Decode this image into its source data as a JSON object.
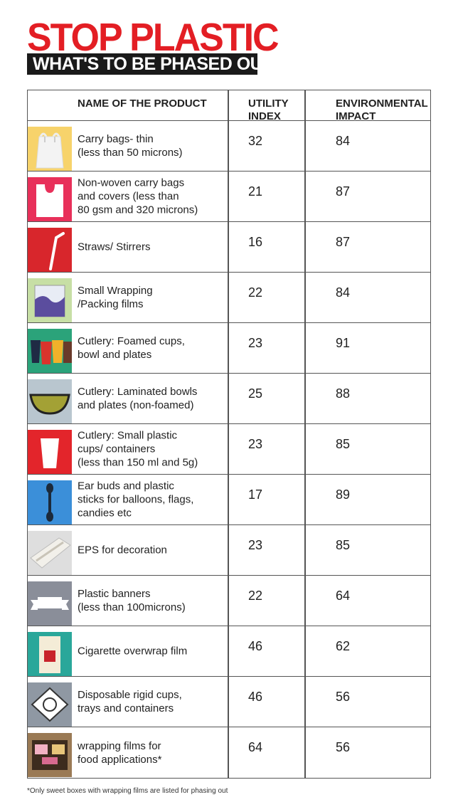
{
  "title": "STOP PLASTIC",
  "subtitle": "WHAT'S TO BE PHASED OUT",
  "footnote": "*Only sweet boxes with wrapping films are listed for phasing out",
  "chart_data": {
    "type": "table",
    "columns": [
      "NAME OF THE PRODUCT",
      "UTILITY INDEX",
      "ENVIRONMENTAL IMPACT"
    ],
    "rows": [
      {
        "name": "Carry bags- thin\n(less than 50 microns)",
        "utility": 32,
        "impact": 84,
        "icon": "carry-bag-icon",
        "color": "#f7d36b"
      },
      {
        "name": "Non-woven carry bags\nand covers (less than\n80 gsm and 320 microns)",
        "utility": 21,
        "impact": 87,
        "icon": "non-woven-bag-icon",
        "color": "#e8305a"
      },
      {
        "name": "Straws/ Stirrers",
        "utility": 16,
        "impact": 87,
        "icon": "straw-icon",
        "color": "#d8262c"
      },
      {
        "name": "Small Wrapping\n/Packing films",
        "utility": 22,
        "impact": 84,
        "icon": "wrapping-film-icon",
        "color": "#c7dfa5"
      },
      {
        "name": "Cutlery: Foamed cups,\nbowl and plates",
        "utility": 23,
        "impact": 91,
        "icon": "foamed-cups-icon",
        "color": "#2ba37a"
      },
      {
        "name": "Cutlery: Laminated bowls\nand plates (non-foamed)",
        "utility": 25,
        "impact": 88,
        "icon": "laminated-bowl-icon",
        "color": "#b9c6cf"
      },
      {
        "name": "Cutlery: Small plastic\ncups/ containers\n(less than 150 ml and 5g)",
        "utility": 23,
        "impact": 85,
        "icon": "plastic-cup-icon",
        "color": "#e3252b"
      },
      {
        "name": "Ear buds and plastic\nsticks for balloons, flags,\ncandies etc",
        "utility": 17,
        "impact": 89,
        "icon": "ear-bud-icon",
        "color": "#3b8fd9"
      },
      {
        "name": "EPS for decoration",
        "utility": 23,
        "impact": 85,
        "icon": "eps-decoration-icon",
        "color": "#dedede"
      },
      {
        "name": "Plastic banners\n(less than 100microns)",
        "utility": 22,
        "impact": 64,
        "icon": "banner-icon",
        "color": "#8a8e99"
      },
      {
        "name": "Cigarette overwrap film",
        "utility": 46,
        "impact": 62,
        "icon": "cigarette-pack-icon",
        "color": "#2aa79a"
      },
      {
        "name": "Disposable rigid cups,\ntrays and containers",
        "utility": 46,
        "impact": 56,
        "icon": "rigid-tray-icon",
        "color": "#8f98a3"
      },
      {
        "name": "wrapping films for\nfood applications*",
        "utility": 64,
        "impact": 56,
        "icon": "sweet-box-icon",
        "color": "#9a7a55"
      }
    ]
  }
}
